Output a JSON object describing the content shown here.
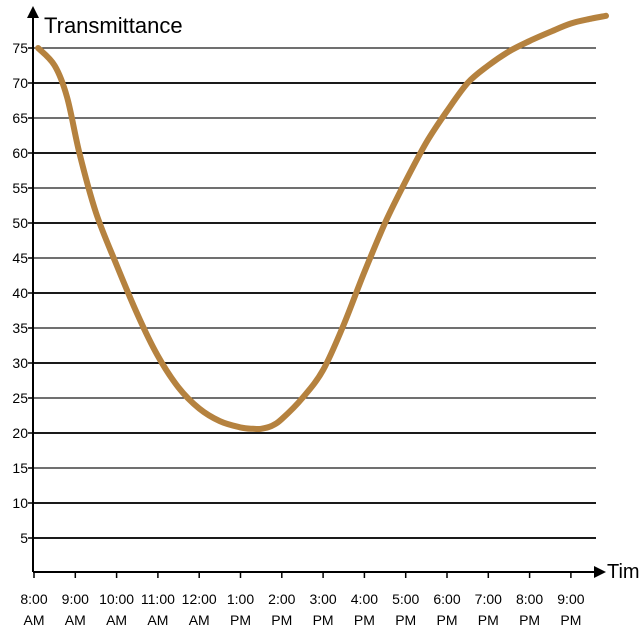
{
  "chart_data": {
    "type": "line",
    "title": "",
    "ylabel": "Transmittance",
    "xlabel": "Time",
    "ylim": [
      0,
      80
    ],
    "grid": true,
    "yticks": [
      5,
      10,
      15,
      20,
      25,
      30,
      35,
      40,
      45,
      50,
      55,
      60,
      65,
      70,
      75
    ],
    "xticks": [
      {
        "value": 8,
        "line1": "8:00",
        "line2": "AM"
      },
      {
        "value": 9,
        "line1": "9:00",
        "line2": "AM"
      },
      {
        "value": 10,
        "line1": "10:00",
        "line2": "AM"
      },
      {
        "value": 11,
        "line1": "11:00",
        "line2": "AM"
      },
      {
        "value": 12,
        "line1": "12:00",
        "line2": "AM"
      },
      {
        "value": 13,
        "line1": "1:00",
        "line2": "PM"
      },
      {
        "value": 14,
        "line1": "2:00",
        "line2": "PM"
      },
      {
        "value": 15,
        "line1": "3:00",
        "line2": "PM"
      },
      {
        "value": 16,
        "line1": "4:00",
        "line2": "PM"
      },
      {
        "value": 17,
        "line1": "5:00",
        "line2": "PM"
      },
      {
        "value": 18,
        "line1": "6:00",
        "line2": "PM"
      },
      {
        "value": 19,
        "line1": "7:00",
        "line2": "PM"
      },
      {
        "value": 20,
        "line1": "8:00",
        "line2": "PM"
      },
      {
        "value": 21,
        "line1": "9:00",
        "line2": "PM"
      }
    ],
    "series": [
      {
        "color": "#b5823f",
        "x": [
          8.1,
          8.5,
          8.8,
          9.1,
          9.5,
          10.0,
          10.5,
          11.0,
          11.5,
          12.0,
          12.5,
          13.0,
          13.3,
          13.5,
          13.75,
          14.0,
          14.5,
          15.0,
          15.5,
          16.0,
          16.5,
          17.0,
          17.5,
          18.0,
          18.5,
          19.0,
          19.5,
          20.0,
          20.5,
          21.0,
          21.5,
          21.85
        ],
        "y": [
          75,
          72.5,
          68,
          60,
          51.5,
          44,
          37,
          31,
          26.5,
          23.5,
          21.7,
          20.8,
          20.6,
          20.6,
          21,
          22,
          25,
          29,
          35.5,
          43,
          50,
          56,
          61.5,
          66,
          70,
          72.5,
          74.5,
          76,
          77.3,
          78.5,
          79.2,
          79.6
        ]
      }
    ]
  }
}
